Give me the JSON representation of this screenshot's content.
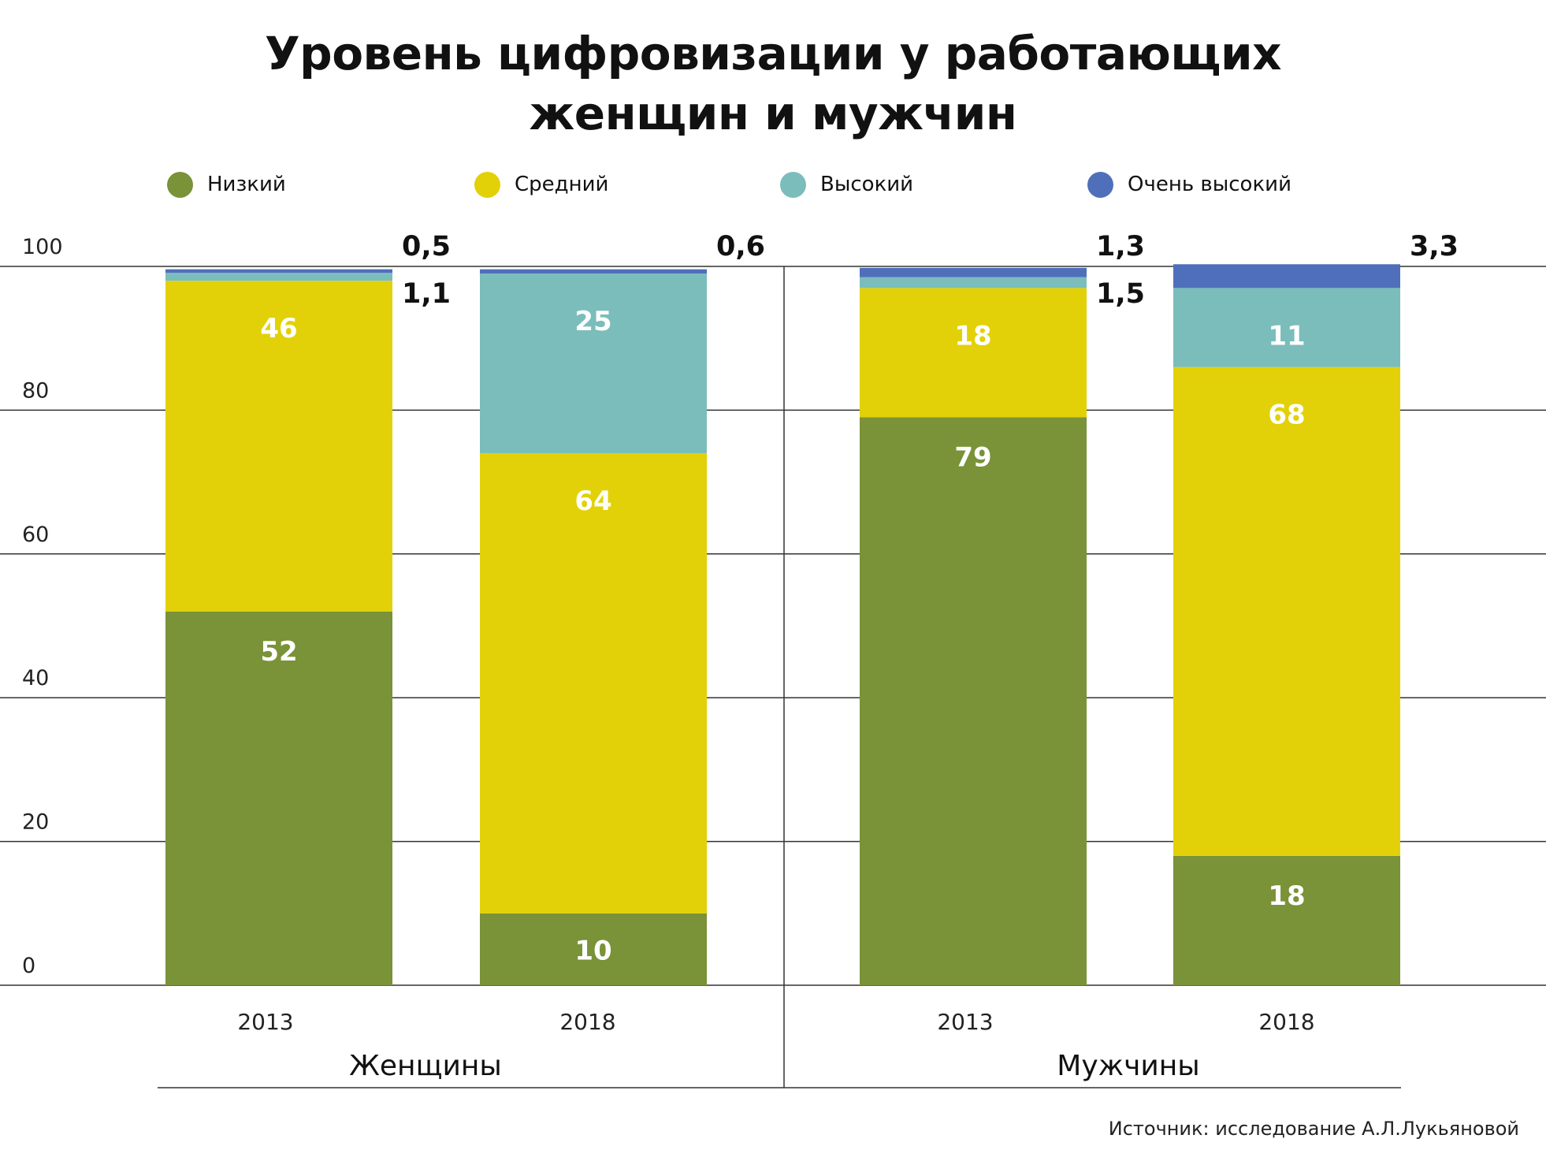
{
  "title_line1": "Уровень цифровизации у работающих",
  "title_line2": "женщин и мужчин",
  "source": "Источник: исследование А.Л.Лукьяновой",
  "colors": {
    "low": "#7a9238",
    "medium": "#e2d108",
    "high": "#7bbdbb",
    "very_high": "#4f6fbb"
  },
  "legend": [
    {
      "key": "low",
      "label": "Низкий"
    },
    {
      "key": "medium",
      "label": "Средний"
    },
    {
      "key": "high",
      "label": "Высокий"
    },
    {
      "key": "very_high",
      "label": "Очень высокий"
    }
  ],
  "chart_data": {
    "type": "bar",
    "stacked": true,
    "ylim": [
      0,
      100
    ],
    "yticks": [
      "0",
      "20",
      "40",
      "60",
      "80",
      "100"
    ],
    "grid": true,
    "groups": [
      {
        "label": "Женщины",
        "categories": [
          "2013",
          "2018"
        ]
      },
      {
        "label": "Мужчины",
        "categories": [
          "2013",
          "2018"
        ]
      }
    ],
    "bars": [
      {
        "group": "Женщины",
        "year": "2013",
        "segments": [
          {
            "series": "low",
            "value": 52,
            "label": "52"
          },
          {
            "series": "medium",
            "value": 46,
            "label": "46"
          },
          {
            "series": "high",
            "value": 1.1,
            "label": "1,1"
          },
          {
            "series": "very_high",
            "value": 0.5,
            "label": "0,5"
          }
        ]
      },
      {
        "group": "Женщины",
        "year": "2018",
        "segments": [
          {
            "series": "low",
            "value": 10,
            "label": "10"
          },
          {
            "series": "medium",
            "value": 64,
            "label": "64"
          },
          {
            "series": "high",
            "value": 25,
            "label": "25"
          },
          {
            "series": "very_high",
            "value": 0.6,
            "label": "0,6"
          }
        ]
      },
      {
        "group": "Мужчины",
        "year": "2013",
        "segments": [
          {
            "series": "low",
            "value": 79,
            "label": "79"
          },
          {
            "series": "medium",
            "value": 18,
            "label": "18"
          },
          {
            "series": "high",
            "value": 1.5,
            "label": "1,5"
          },
          {
            "series": "very_high",
            "value": 1.3,
            "label": "1,3"
          }
        ]
      },
      {
        "group": "Мужчины",
        "year": "2018",
        "segments": [
          {
            "series": "low",
            "value": 18,
            "label": "18"
          },
          {
            "series": "medium",
            "value": 68,
            "label": "68"
          },
          {
            "series": "high",
            "value": 11,
            "label": "11"
          },
          {
            "series": "very_high",
            "value": 3.3,
            "label": "3,3"
          }
        ]
      }
    ]
  }
}
